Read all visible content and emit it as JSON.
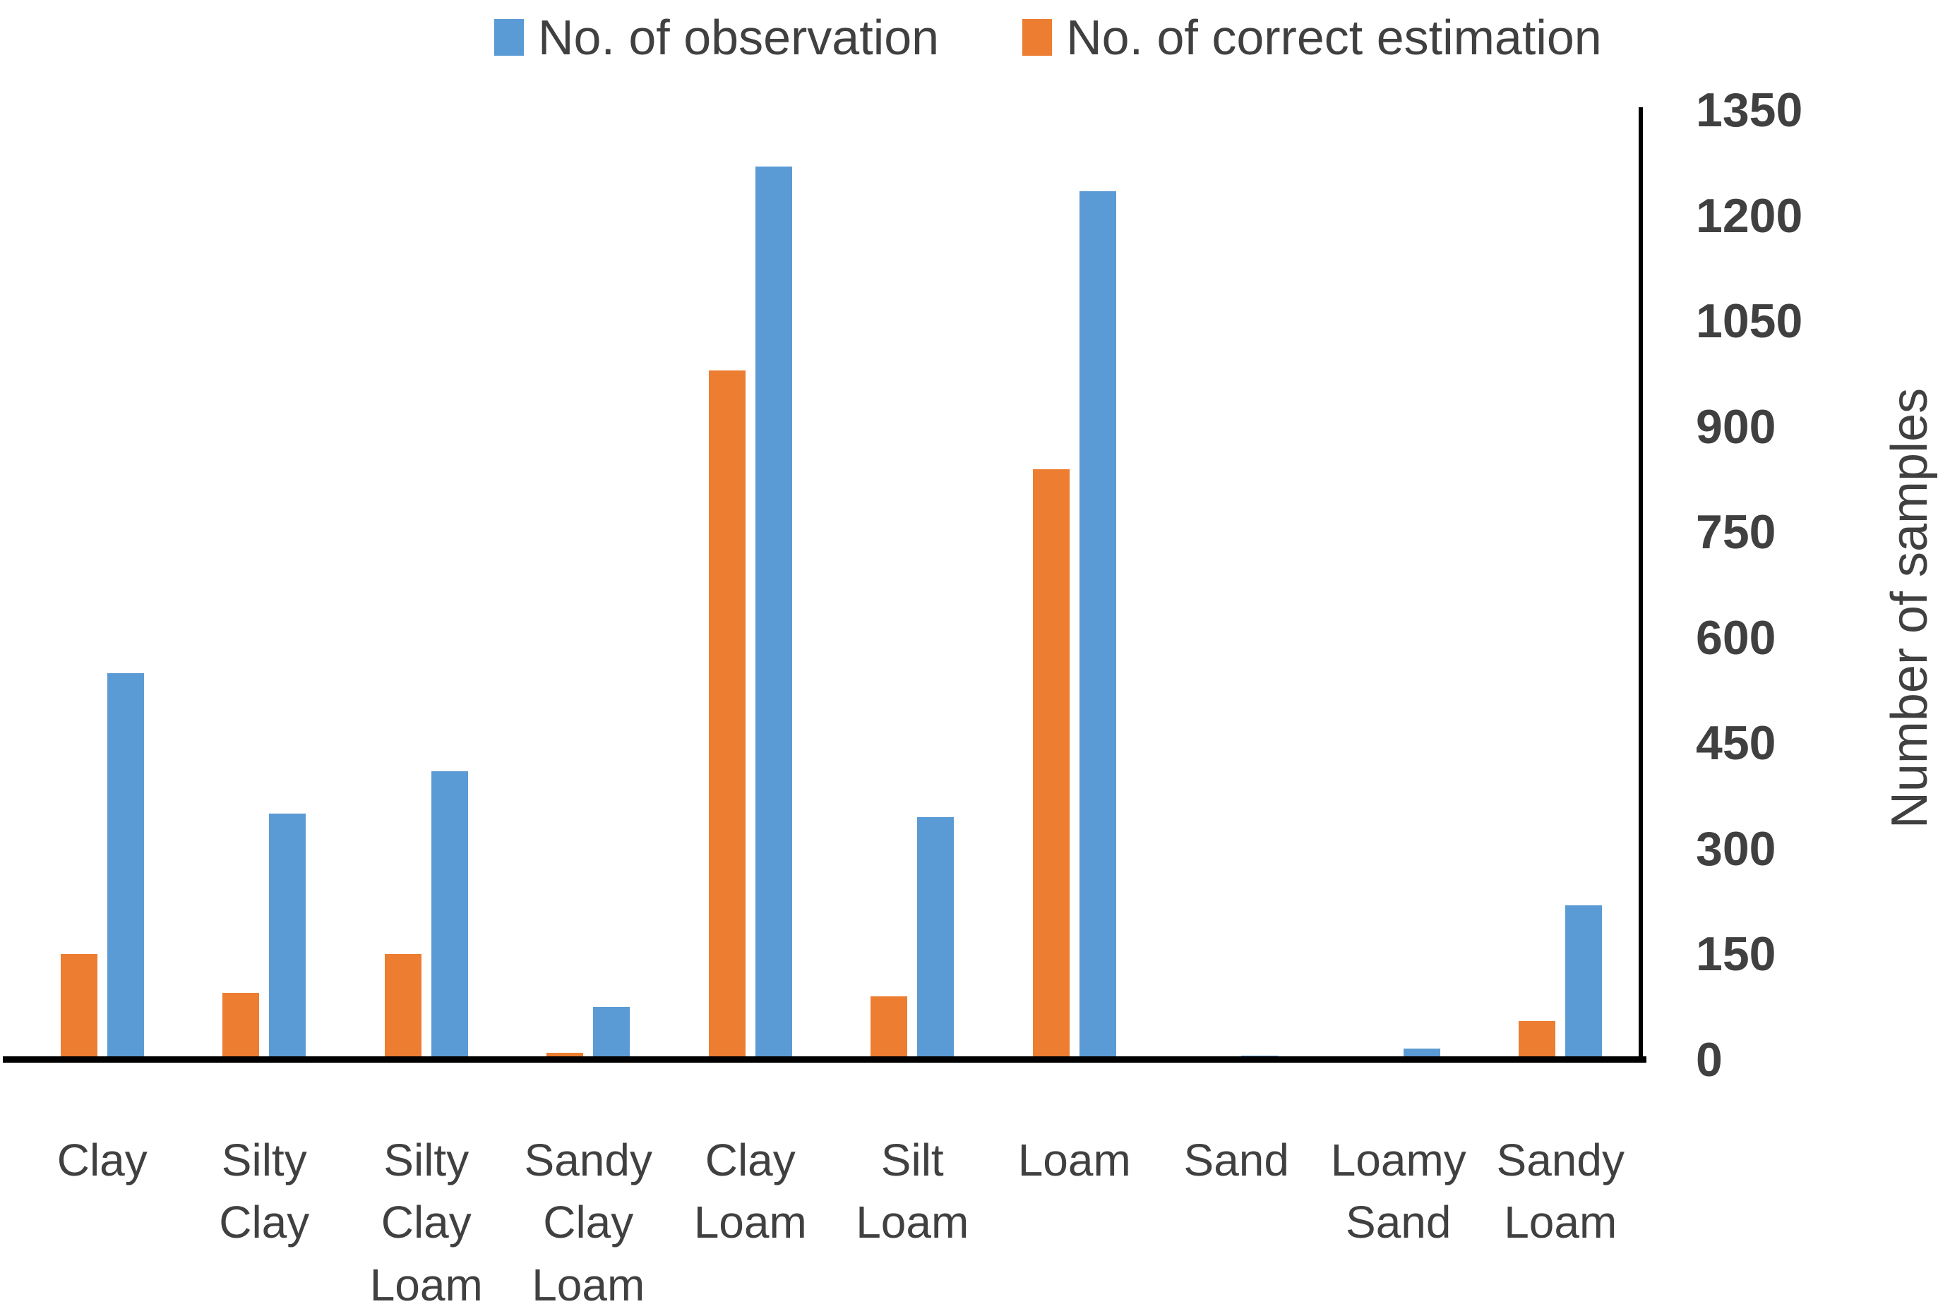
{
  "chart_data": {
    "type": "bar",
    "title": "",
    "categories": [
      "Clay",
      "Silty Clay",
      "Silty Clay Loam",
      "Sandy Clay Loam",
      "Clay Loam",
      "Silt Loam",
      "Loam",
      "Sand",
      "Loamy Sand",
      "Sandy Loam"
    ],
    "category_label_lines": [
      "Clay",
      "Silty\nClay",
      "Silty\nClay\nLoam",
      "Sandy\nClay\nLoam",
      "Clay\nLoam",
      "Silt\nLoam",
      "Loam",
      "Sand",
      "Loamy\nSand",
      "Sandy\nLoam"
    ],
    "series": [
      {
        "name": "No. of observation",
        "color": "#5B9BD5",
        "values": [
          550,
          350,
          410,
          75,
          1270,
          345,
          1235,
          6,
          16,
          220
        ]
      },
      {
        "name": "No. of correct estimation",
        "color": "#ED7D31",
        "values": [
          150,
          95,
          150,
          10,
          980,
          90,
          840,
          0,
          0,
          55
        ]
      }
    ],
    "bar_order_in_group": [
      "No. of correct estimation",
      "No. of observation"
    ],
    "xlabel": "",
    "ylabel": "Number of samples",
    "ylim": [
      0,
      1350
    ],
    "yticks": [
      0,
      150,
      300,
      450,
      600,
      750,
      900,
      1050,
      1200,
      1350
    ],
    "legend_position": "top",
    "grid": false,
    "axis_color": "#000000",
    "text_color": "#404040"
  }
}
